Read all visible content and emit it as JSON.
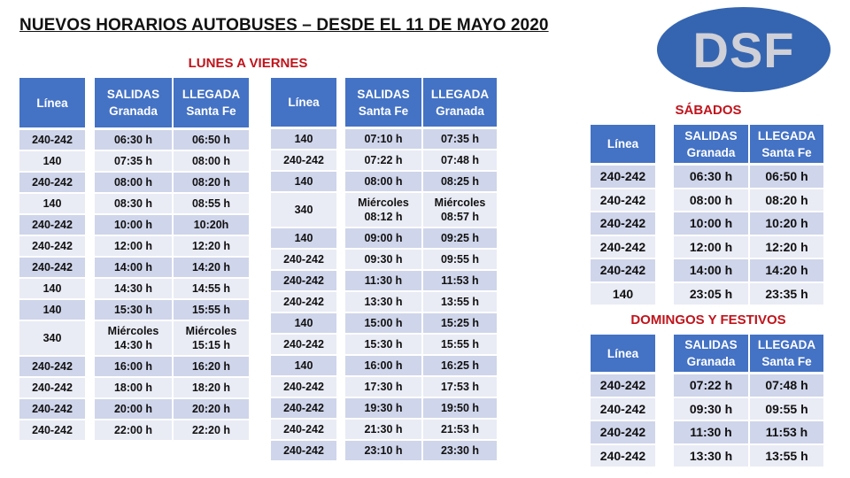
{
  "title": "NUEVOS HORARIOS AUTOBUSES – DESDE EL 11 DE MAYO 2020",
  "logo": "DSF",
  "colors": {
    "header": "#4472c4",
    "row_dark": "#cfd5ea",
    "row_light": "#e9ebf5",
    "section": "#c0141c",
    "logo": "#3565b0"
  },
  "weekday": {
    "label": "LUNES A VIERNES",
    "outbound": {
      "headers": [
        "Línea",
        "SALIDAS Granada",
        "LLEGADA Santa Fe"
      ],
      "rows": [
        [
          "240-242",
          "06:30 h",
          "06:50 h"
        ],
        [
          "140",
          "07:35 h",
          "08:00 h"
        ],
        [
          "240-242",
          "08:00 h",
          "08:20 h"
        ],
        [
          "140",
          "08:30 h",
          "08:55 h"
        ],
        [
          "240-242",
          "10:00 h",
          "10:20h"
        ],
        [
          "240-242",
          "12:00 h",
          "12:20 h"
        ],
        [
          "240-242",
          "14:00 h",
          "14:20 h"
        ],
        [
          "140",
          "14:30 h",
          "14:55 h"
        ],
        [
          "140",
          "15:30 h",
          "15:55 h"
        ],
        [
          "340",
          "Miércoles 14:30 h",
          "Miércoles 15:15 h"
        ],
        [
          "240-242",
          "16:00 h",
          "16:20 h"
        ],
        [
          "240-242",
          "18:00 h",
          "18:20 h"
        ],
        [
          "240-242",
          "20:00 h",
          "20:20 h"
        ],
        [
          "240-242",
          "22:00 h",
          "22:20 h"
        ]
      ]
    },
    "inbound": {
      "headers": [
        "Línea",
        "SALIDAS Santa Fe",
        "LLEGADA Granada"
      ],
      "rows": [
        [
          "140",
          "07:10 h",
          "07:35 h"
        ],
        [
          "240-242",
          "07:22 h",
          "07:48 h"
        ],
        [
          "140",
          "08:00 h",
          "08:25 h"
        ],
        [
          "340",
          "Miércoles 08:12 h",
          "Miércoles 08:57 h"
        ],
        [
          "140",
          "09:00 h",
          "09:25 h"
        ],
        [
          "240-242",
          "09:30 h",
          "09:55 h"
        ],
        [
          "240-242",
          "11:30 h",
          "11:53 h"
        ],
        [
          "240-242",
          "13:30 h",
          "13:55 h"
        ],
        [
          "140",
          "15:00 h",
          "15:25 h"
        ],
        [
          "240-242",
          "15:30 h",
          "15:55 h"
        ],
        [
          "140",
          "16:00 h",
          "16:25 h"
        ],
        [
          "240-242",
          "17:30 h",
          "17:53 h"
        ],
        [
          "240-242",
          "19:30 h",
          "19:50 h"
        ],
        [
          "240-242",
          "21:30 h",
          "21:53 h"
        ],
        [
          "240-242",
          "23:10 h",
          "23:30 h"
        ]
      ]
    }
  },
  "saturday": {
    "label": "SÁBADOS",
    "headers": [
      "Línea",
      "SALIDAS Granada",
      "LLEGADA Santa Fe"
    ],
    "rows": [
      [
        "240-242",
        "06:30 h",
        "06:50 h"
      ],
      [
        "240-242",
        "08:00 h",
        "08:20 h"
      ],
      [
        "240-242",
        "10:00 h",
        "10:20 h"
      ],
      [
        "240-242",
        "12:00 h",
        "12:20 h"
      ],
      [
        "240-242",
        "14:00 h",
        "14:20 h"
      ],
      [
        "140",
        "23:05 h",
        "23:35 h"
      ]
    ]
  },
  "sunday": {
    "label": "DOMINGOS Y FESTIVOS",
    "headers": [
      "Línea",
      "SALIDAS Granada",
      "LLEGADA Santa Fe"
    ],
    "rows": [
      [
        "240-242",
        "07:22 h",
        "07:48 h"
      ],
      [
        "240-242",
        "09:30 h",
        "09:55 h"
      ],
      [
        "240-242",
        "11:30 h",
        "11:53 h"
      ],
      [
        "240-242",
        "13:30 h",
        "13:55 h"
      ]
    ]
  }
}
